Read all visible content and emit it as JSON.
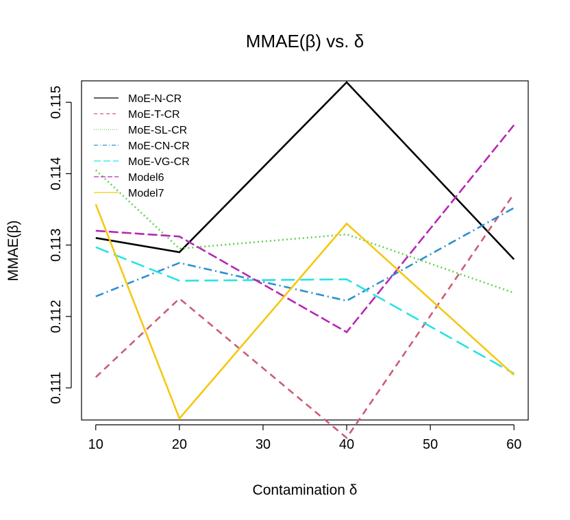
{
  "chart_data": {
    "type": "line",
    "title": "MMAE(β) vs. δ",
    "xlabel": "Contamination δ",
    "ylabel": "MMAE(β)",
    "x": [
      10,
      20,
      40,
      60
    ],
    "xticks": [
      "10",
      "20",
      "30",
      "40",
      "50",
      "60"
    ],
    "yticks": [
      "0.111",
      "0.112",
      "0.113",
      "0.114",
      "0.115"
    ],
    "xlim": [
      8.3,
      61.7
    ],
    "ylim": [
      110.55,
      115.3
    ],
    "legend_position": "top-left",
    "series": [
      {
        "name": "MoE-N-CR",
        "values": [
          113.1,
          112.9,
          115.28,
          112.8
        ],
        "color": "#000000",
        "dash": "none",
        "width": 2.6
      },
      {
        "name": "MoE-T-CR",
        "values": [
          111.15,
          112.25,
          110.3,
          113.72
        ],
        "color": "#cd5b75",
        "dash": "10,7",
        "width": 2.6
      },
      {
        "name": "MoE-SL-CR",
        "values": [
          114.05,
          112.95,
          113.15,
          112.33
        ],
        "color": "#61d04f",
        "dash": "2,4",
        "width": 2.6
      },
      {
        "name": "MoE-CN-CR",
        "values": [
          112.28,
          112.75,
          112.22,
          113.52
        ],
        "color": "#2e8fcf",
        "dash": "12,5,2,5",
        "width": 2.6
      },
      {
        "name": "MoE-VG-CR",
        "values": [
          112.97,
          112.5,
          112.52,
          111.2
        ],
        "color": "#28e2e5",
        "dash": "20,8",
        "width": 2.6
      },
      {
        "name": "Model6",
        "values": [
          113.2,
          113.12,
          111.78,
          114.68
        ],
        "color": "#b726b4",
        "dash": "14,5",
        "width": 2.6
      },
      {
        "name": "Model7",
        "values": [
          113.57,
          110.57,
          113.3,
          111.18
        ],
        "color": "#f5c710",
        "dash": "none",
        "width": 2.6
      }
    ]
  }
}
